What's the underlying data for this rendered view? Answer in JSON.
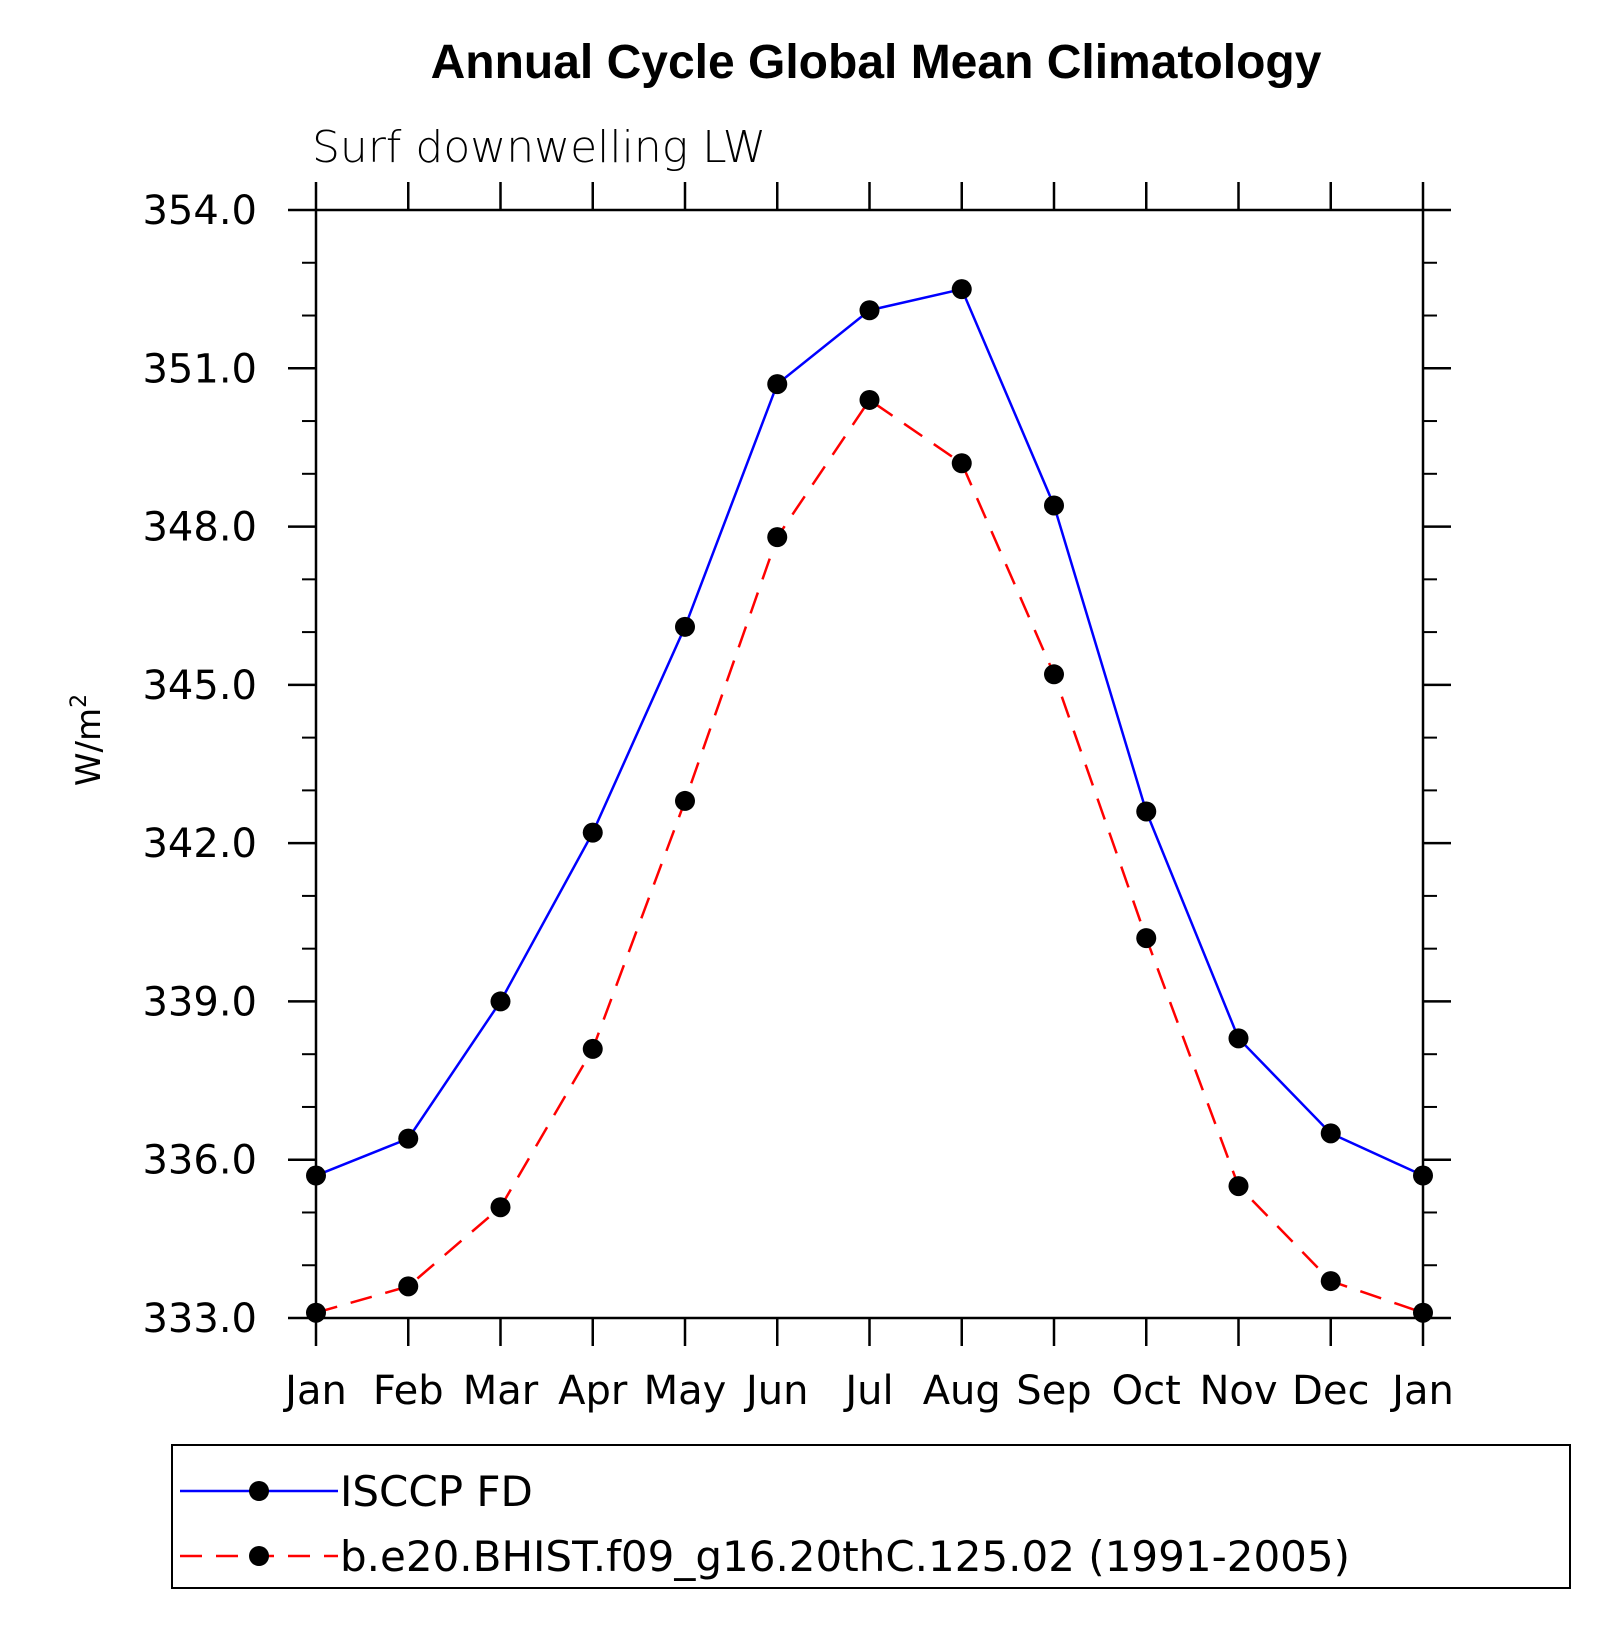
{
  "chart_data": {
    "type": "line",
    "title": "Annual Cycle Global Mean Climatology",
    "subtitle": "Surf downwelling LW",
    "ylabel_main": "W/m",
    "ylabel_sup": "2",
    "xlabel": "",
    "categories": [
      "Jan",
      "Feb",
      "Mar",
      "Apr",
      "May",
      "Jun",
      "Jul",
      "Aug",
      "Sep",
      "Oct",
      "Nov",
      "Dec",
      "Jan"
    ],
    "ylim": [
      333.0,
      354.0
    ],
    "yticks": [
      333.0,
      336.0,
      339.0,
      342.0,
      345.0,
      348.0,
      351.0,
      354.0
    ],
    "ytick_labels": [
      "333.0",
      "336.0",
      "339.0",
      "342.0",
      "345.0",
      "348.0",
      "351.0",
      "354.0"
    ],
    "grid": false,
    "legend_position": "bottom",
    "series": [
      {
        "name": "ISCCP FD",
        "color": "#0000ff",
        "dash": "solid",
        "values": [
          335.7,
          336.4,
          339.0,
          342.2,
          346.1,
          350.7,
          352.1,
          352.5,
          348.4,
          342.6,
          338.3,
          336.5,
          335.7
        ]
      },
      {
        "name": "b.e20.BHIST.f09_g16.20thC.125.02 (1991-2005)",
        "color": "#ff0000",
        "dash": "dashed",
        "values": [
          333.1,
          333.6,
          335.1,
          338.1,
          342.8,
          347.8,
          350.4,
          349.2,
          345.2,
          340.2,
          335.5,
          333.7,
          333.1
        ]
      }
    ]
  }
}
